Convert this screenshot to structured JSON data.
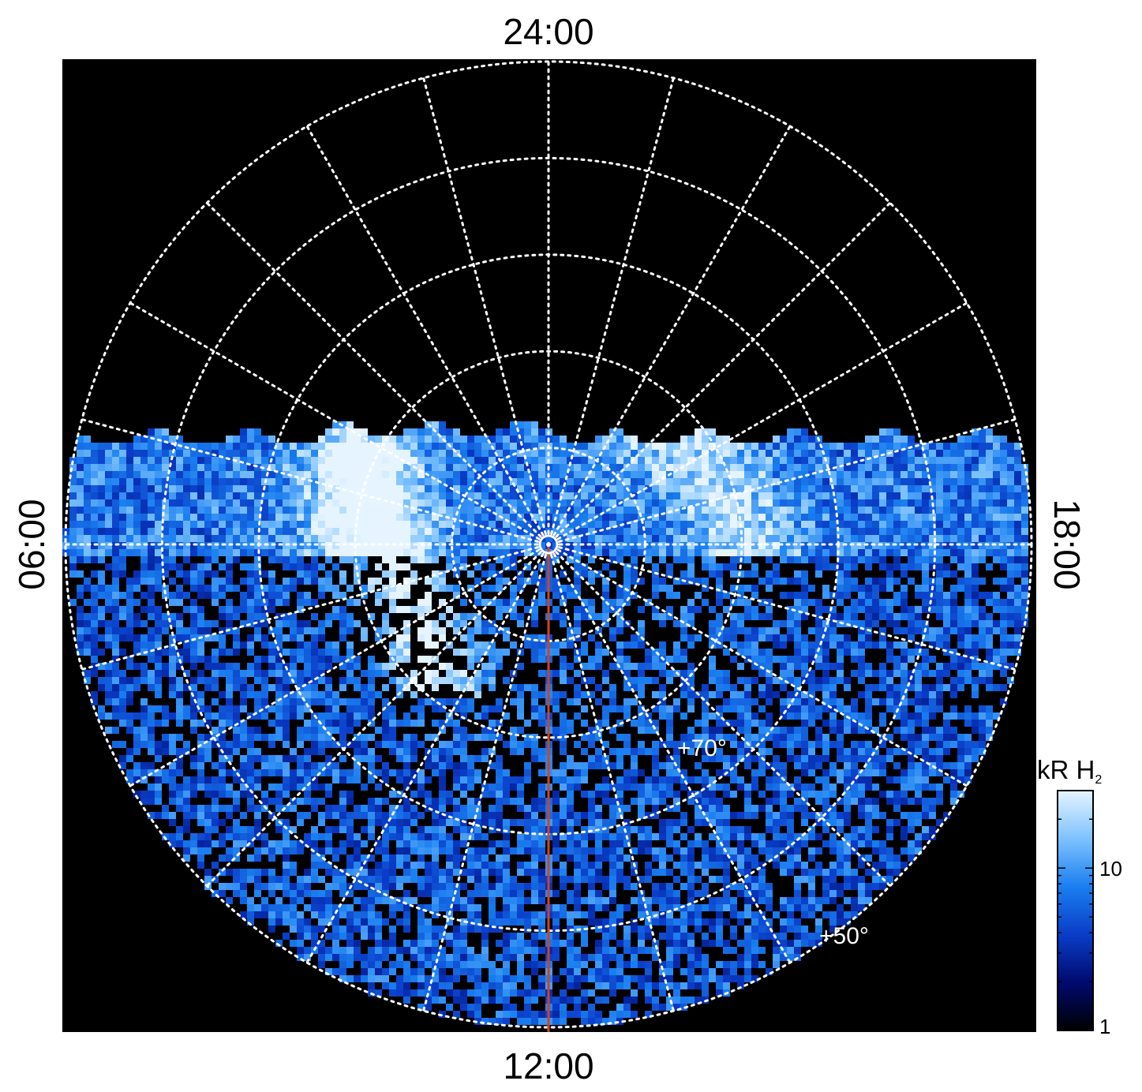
{
  "chart_data": {
    "type": "heatmap",
    "projection": "polar",
    "background": "#000000",
    "time_labels": {
      "top": "24:00",
      "bottom": "12:00",
      "left": "06:00",
      "right": "18:00"
    },
    "latitude_rings_deg": [
      90,
      80,
      70,
      60,
      50,
      40
    ],
    "latitude_labels": [
      {
        "lat": 70,
        "text": "+70°"
      },
      {
        "lat": 50,
        "text": "+50°"
      }
    ],
    "meridian_step_hours": 1,
    "grid": true,
    "grid_color": "#ffffff",
    "subsolar_line_color": "#d2431f",
    "colorbar": {
      "unit": "kR H",
      "unit_subscript": "2",
      "scale": "log",
      "range": [
        1,
        30
      ],
      "ticks": [
        "1",
        "10"
      ],
      "colors": [
        "#000000",
        "#000a6e",
        "#0a3dc8",
        "#1a7ff0",
        "#7ec2ff",
        "#e6f4ff"
      ]
    }
  }
}
